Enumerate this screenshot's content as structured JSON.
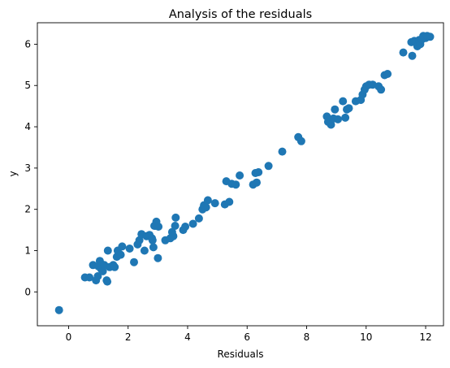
{
  "chart_data": {
    "type": "scatter",
    "title": "Analysis of the residuals",
    "xlabel": "Residuals",
    "ylabel": "y",
    "xlim": [
      -1.05,
      12.6
    ],
    "ylim": [
      -0.82,
      6.52
    ],
    "xticks": [
      0,
      2,
      4,
      6,
      8,
      10,
      12
    ],
    "yticks": [
      0,
      1,
      2,
      3,
      4,
      5,
      6
    ],
    "grid": false,
    "marker_color": "#1f77b4",
    "points": [
      [
        -0.32,
        -0.44
      ],
      [
        0.55,
        0.35
      ],
      [
        0.7,
        0.35
      ],
      [
        0.82,
        0.65
      ],
      [
        0.92,
        0.28
      ],
      [
        0.98,
        0.38
      ],
      [
        1.0,
        0.62
      ],
      [
        1.05,
        0.75
      ],
      [
        1.1,
        0.55
      ],
      [
        1.15,
        0.5
      ],
      [
        1.2,
        0.65
      ],
      [
        1.28,
        0.28
      ],
      [
        1.3,
        0.25
      ],
      [
        1.32,
        1.0
      ],
      [
        1.38,
        0.6
      ],
      [
        1.5,
        0.65
      ],
      [
        1.55,
        0.6
      ],
      [
        1.62,
        0.85
      ],
      [
        1.65,
        1.0
      ],
      [
        1.75,
        0.9
      ],
      [
        1.8,
        1.1
      ],
      [
        2.05,
        1.05
      ],
      [
        2.2,
        0.72
      ],
      [
        2.32,
        1.15
      ],
      [
        2.38,
        1.25
      ],
      [
        2.45,
        1.4
      ],
      [
        2.55,
        1.0
      ],
      [
        2.62,
        1.35
      ],
      [
        2.72,
        1.38
      ],
      [
        2.8,
        1.3
      ],
      [
        2.82,
        1.25
      ],
      [
        2.85,
        1.08
      ],
      [
        2.88,
        1.6
      ],
      [
        2.92,
        1.6
      ],
      [
        2.95,
        1.7
      ],
      [
        3.0,
        0.82
      ],
      [
        3.02,
        1.58
      ],
      [
        3.25,
        1.25
      ],
      [
        3.42,
        1.3
      ],
      [
        3.48,
        1.45
      ],
      [
        3.52,
        1.35
      ],
      [
        3.58,
        1.6
      ],
      [
        3.6,
        1.8
      ],
      [
        3.85,
        1.5
      ],
      [
        3.92,
        1.58
      ],
      [
        4.18,
        1.65
      ],
      [
        4.38,
        1.78
      ],
      [
        4.5,
        2.0
      ],
      [
        4.55,
        2.1
      ],
      [
        4.62,
        2.05
      ],
      [
        4.68,
        2.22
      ],
      [
        4.92,
        2.15
      ],
      [
        5.25,
        2.12
      ],
      [
        5.3,
        2.68
      ],
      [
        5.4,
        2.18
      ],
      [
        5.48,
        2.62
      ],
      [
        5.62,
        2.6
      ],
      [
        5.75,
        2.82
      ],
      [
        6.2,
        2.6
      ],
      [
        6.28,
        2.88
      ],
      [
        6.32,
        2.65
      ],
      [
        6.38,
        2.9
      ],
      [
        6.72,
        3.05
      ],
      [
        7.18,
        3.4
      ],
      [
        7.72,
        3.75
      ],
      [
        7.82,
        3.65
      ],
      [
        8.68,
        4.25
      ],
      [
        8.72,
        4.12
      ],
      [
        8.82,
        4.05
      ],
      [
        8.9,
        4.2
      ],
      [
        8.95,
        4.42
      ],
      [
        9.05,
        4.18
      ],
      [
        9.22,
        4.62
      ],
      [
        9.3,
        4.22
      ],
      [
        9.35,
        4.42
      ],
      [
        9.42,
        4.45
      ],
      [
        9.65,
        4.62
      ],
      [
        9.82,
        4.65
      ],
      [
        9.88,
        4.78
      ],
      [
        9.95,
        4.9
      ],
      [
        10.0,
        4.98
      ],
      [
        10.1,
        5.02
      ],
      [
        10.22,
        5.02
      ],
      [
        10.42,
        4.98
      ],
      [
        10.5,
        4.9
      ],
      [
        10.62,
        5.25
      ],
      [
        10.72,
        5.28
      ],
      [
        11.25,
        5.8
      ],
      [
        11.52,
        6.05
      ],
      [
        11.55,
        5.72
      ],
      [
        11.62,
        6.08
      ],
      [
        11.72,
        5.95
      ],
      [
        11.78,
        6.1
      ],
      [
        11.82,
        6.0
      ],
      [
        11.88,
        6.12
      ],
      [
        11.92,
        6.2
      ],
      [
        12.0,
        6.15
      ],
      [
        12.05,
        6.2
      ],
      [
        12.15,
        6.18
      ]
    ]
  }
}
